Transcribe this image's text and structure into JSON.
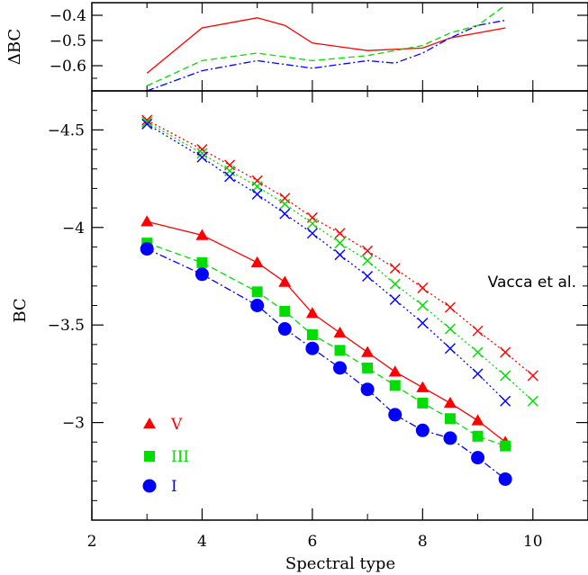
{
  "chart_data": [
    {
      "type": "line",
      "panel": "top",
      "ylabel": "ΔBC",
      "ylim": [
        -0.7,
        -0.35
      ],
      "yticks": [
        -0.4,
        -0.5,
        -0.6
      ],
      "ytick_labels": [
        "−0.4",
        "−0.5",
        "−0.6"
      ],
      "xlim": [
        2,
        11
      ],
      "series": [
        {
          "key": "V",
          "color": "#ff0000",
          "dash": "",
          "x": [
            3,
            4,
            5,
            5.5,
            6,
            7,
            8,
            8.5,
            9,
            9.5
          ],
          "y": [
            -0.63,
            -0.45,
            -0.41,
            -0.44,
            -0.51,
            -0.54,
            -0.53,
            -0.49,
            -0.47,
            -0.45
          ]
        },
        {
          "key": "III",
          "color": "#00dd00",
          "dash": "7,4",
          "x": [
            3,
            4,
            5,
            6,
            7,
            8,
            8.5,
            9,
            9.5
          ],
          "y": [
            -0.68,
            -0.58,
            -0.55,
            -0.58,
            -0.56,
            -0.52,
            -0.47,
            -0.44,
            -0.36
          ]
        },
        {
          "key": "I",
          "color": "#0000ff",
          "dash": "8,3,2,3",
          "x": [
            3,
            4,
            5,
            6,
            7,
            7.5,
            8,
            8.5,
            9,
            9.5
          ],
          "y": [
            -0.7,
            -0.62,
            -0.58,
            -0.61,
            -0.58,
            -0.59,
            -0.55,
            -0.49,
            -0.44,
            -0.42
          ]
        }
      ]
    },
    {
      "type": "line",
      "panel": "main",
      "xlabel": "Spectral type",
      "ylabel": "BC",
      "xlim": [
        2,
        11
      ],
      "ylim": [
        -2.5,
        -4.7
      ],
      "xticks": [
        2,
        4,
        6,
        8,
        10
      ],
      "xtick_labels": [
        "2",
        "4",
        "6",
        "8",
        "10"
      ],
      "yticks": [
        -4.5,
        -4,
        -3.5,
        -3
      ],
      "ytick_labels": [
        "−4.5",
        "−4",
        "−3.5",
        "−3"
      ],
      "annotation": "Vacca et al.",
      "series": [
        {
          "key": "V",
          "name": "V",
          "color": "#ff0000",
          "marker": "triangle",
          "dash": "",
          "x": [
            3,
            4,
            5,
            5.5,
            6,
            6.5,
            7,
            7.5,
            8,
            8.5,
            9,
            9.5
          ],
          "y": [
            -4.03,
            -3.96,
            -3.82,
            -3.72,
            -3.56,
            -3.46,
            -3.36,
            -3.26,
            -3.18,
            -3.1,
            -3.01,
            -2.9
          ]
        },
        {
          "key": "III",
          "name": "III",
          "color": "#00dd00",
          "marker": "square",
          "dash": "7,4",
          "x": [
            3,
            4,
            5,
            5.5,
            6,
            6.5,
            7,
            7.5,
            8,
            8.5,
            9,
            9.5
          ],
          "y": [
            -3.92,
            -3.82,
            -3.67,
            -3.57,
            -3.45,
            -3.37,
            -3.28,
            -3.19,
            -3.1,
            -3.02,
            -2.93,
            -2.88
          ]
        },
        {
          "key": "I",
          "name": "I",
          "color": "#0000ff",
          "marker": "circle",
          "dash": "8,3,2,3",
          "x": [
            3,
            4,
            5,
            5.5,
            6,
            6.5,
            7,
            7.5,
            8,
            8.5,
            9,
            9.5
          ],
          "y": [
            -3.89,
            -3.76,
            -3.6,
            -3.48,
            -3.38,
            -3.28,
            -3.17,
            -3.04,
            -2.96,
            -2.92,
            -2.82,
            -2.71
          ]
        },
        {
          "key": "Vv",
          "color": "#ff0000",
          "marker": "x",
          "dash": "2,3",
          "x": [
            3,
            4,
            4.5,
            5,
            5.5,
            6,
            6.5,
            7,
            7.5,
            8,
            8.5,
            9,
            9.5,
            10
          ],
          "y": [
            -4.55,
            -4.4,
            -4.32,
            -4.24,
            -4.15,
            -4.05,
            -3.97,
            -3.88,
            -3.79,
            -3.69,
            -3.59,
            -3.47,
            -3.36,
            -3.24
          ]
        },
        {
          "key": "IIIv",
          "color": "#00dd00",
          "marker": "x",
          "dash": "2,3",
          "x": [
            3,
            4,
            4.5,
            5,
            5.5,
            6,
            6.5,
            7,
            7.5,
            8,
            8.5,
            9,
            9.5,
            10
          ],
          "y": [
            -4.54,
            -4.38,
            -4.29,
            -4.21,
            -4.12,
            -4.02,
            -3.92,
            -3.83,
            -3.71,
            -3.6,
            -3.48,
            -3.36,
            -3.24,
            -3.11
          ]
        },
        {
          "key": "Iv",
          "color": "#0000ff",
          "marker": "x",
          "dash": "2,3",
          "x": [
            3,
            4,
            4.5,
            5,
            5.5,
            6,
            6.5,
            7,
            7.5,
            8,
            8.5,
            9,
            9.5
          ],
          "y": [
            -4.53,
            -4.36,
            -4.26,
            -4.17,
            -4.07,
            -3.97,
            -3.86,
            -3.75,
            -3.63,
            -3.51,
            -3.38,
            -3.25,
            -3.11
          ]
        }
      ],
      "legend": [
        {
          "label": "V",
          "color": "#ff0000",
          "marker": "triangle"
        },
        {
          "label": "III",
          "color": "#00dd00",
          "marker": "square"
        },
        {
          "label": "I",
          "color": "#0000ff",
          "marker": "circle"
        }
      ]
    }
  ]
}
